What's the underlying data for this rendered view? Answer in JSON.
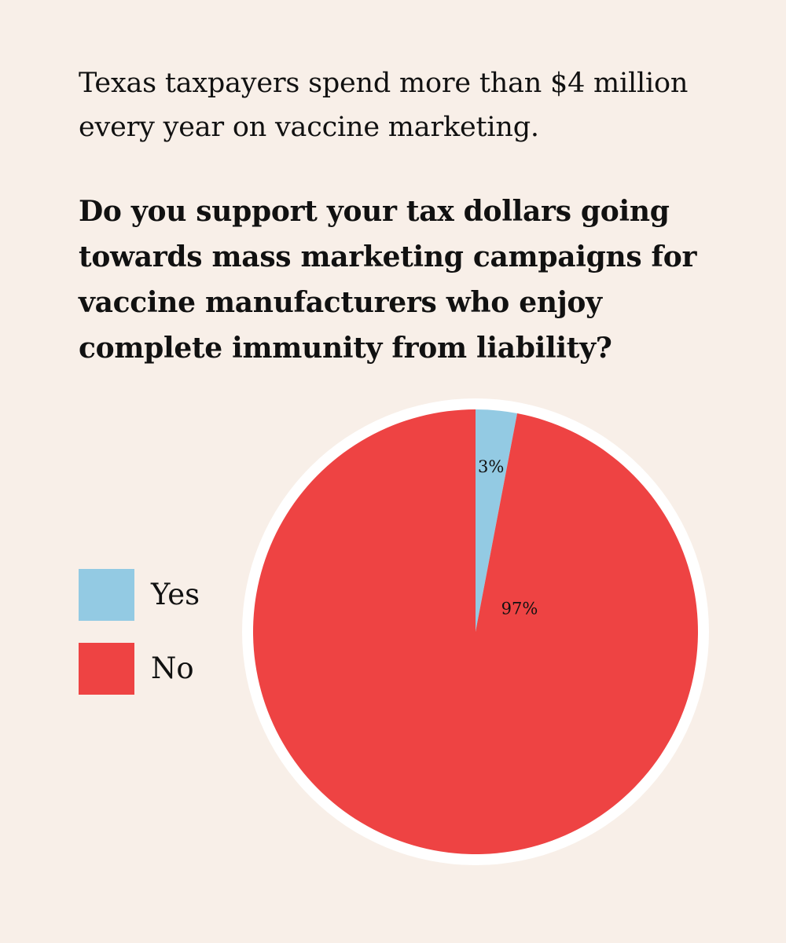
{
  "colors": {
    "background": "#f8efe8",
    "yes": "#93cae3",
    "no": "#ee4343",
    "pie_border": "#ffffff"
  },
  "intro": "Texas taxpayers spend more than $4 million every year on vaccine marketing.",
  "question": "Do you support your tax dollars going towards mass marketing campaigns for vaccine manufacturers who enjoy complete immunity from liability?",
  "legend": [
    {
      "label": "Yes",
      "color": "#93cae3"
    },
    {
      "label": "No",
      "color": "#ee4343"
    }
  ],
  "chart_data": {
    "type": "pie",
    "categories": [
      "Yes",
      "No"
    ],
    "values": [
      3,
      97
    ],
    "labels": [
      "3%",
      "97%"
    ],
    "colors": [
      "#93cae3",
      "#ee4343"
    ],
    "legend": "left",
    "start": "top",
    "direction": "clockwise"
  }
}
